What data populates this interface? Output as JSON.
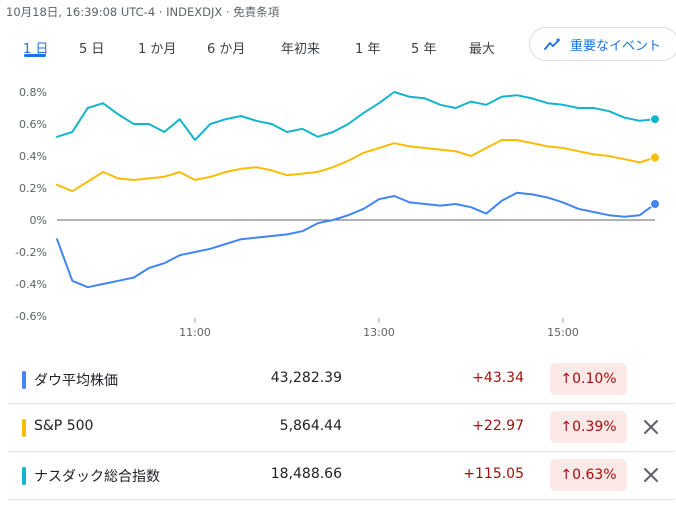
{
  "header": {
    "meta": "10月18日, 16:39:08 UTC-4 · INDEXDJX · 免責条項"
  },
  "tabs": [
    {
      "label": "1 日",
      "active": true
    },
    {
      "label": "5 日"
    },
    {
      "label": "1 か月"
    },
    {
      "label": "6 か月"
    },
    {
      "label": "年初来"
    },
    {
      "label": "1 年"
    },
    {
      "label": "5 年"
    },
    {
      "label": "最大"
    }
  ],
  "events_button": {
    "label": "重要なイベント",
    "icon": "trend-sparkle-icon"
  },
  "chart_data": {
    "type": "line",
    "y_unit": "%",
    "ylim": [
      -0.6,
      0.8
    ],
    "y_ticks": [
      "0.8%",
      "0.6%",
      "0.4%",
      "0.2%",
      "0%",
      "-0.2%",
      "-0.4%",
      "-0.6%"
    ],
    "x_ticks": [
      "11:00",
      "13:00",
      "15:00"
    ],
    "x_range": [
      "09:30",
      "16:00"
    ],
    "grid": false,
    "baseline": 0,
    "series": [
      {
        "name": "ナスダック総合指数",
        "color": "#12b5cb",
        "x": [
          "09:30",
          "09:40",
          "09:50",
          "10:00",
          "10:10",
          "10:20",
          "10:30",
          "10:40",
          "10:50",
          "11:00",
          "11:10",
          "11:20",
          "11:30",
          "11:40",
          "11:50",
          "12:00",
          "12:10",
          "12:20",
          "12:30",
          "12:40",
          "12:50",
          "13:00",
          "13:10",
          "13:20",
          "13:30",
          "13:40",
          "13:50",
          "14:00",
          "14:10",
          "14:20",
          "14:30",
          "14:40",
          "14:50",
          "15:00",
          "15:10",
          "15:20",
          "15:30",
          "15:40",
          "15:50",
          "16:00"
        ],
        "values": [
          0.52,
          0.55,
          0.7,
          0.73,
          0.66,
          0.6,
          0.6,
          0.55,
          0.63,
          0.5,
          0.6,
          0.63,
          0.65,
          0.62,
          0.6,
          0.55,
          0.57,
          0.52,
          0.55,
          0.6,
          0.67,
          0.73,
          0.8,
          0.77,
          0.76,
          0.72,
          0.7,
          0.74,
          0.72,
          0.77,
          0.78,
          0.76,
          0.73,
          0.72,
          0.7,
          0.7,
          0.68,
          0.64,
          0.62,
          0.63
        ]
      },
      {
        "name": "S&P 500",
        "color": "#fbbc04",
        "x": [
          "09:30",
          "09:40",
          "09:50",
          "10:00",
          "10:10",
          "10:20",
          "10:30",
          "10:40",
          "10:50",
          "11:00",
          "11:10",
          "11:20",
          "11:30",
          "11:40",
          "11:50",
          "12:00",
          "12:10",
          "12:20",
          "12:30",
          "12:40",
          "12:50",
          "13:00",
          "13:10",
          "13:20",
          "13:30",
          "13:40",
          "13:50",
          "14:00",
          "14:10",
          "14:20",
          "14:30",
          "14:40",
          "14:50",
          "15:00",
          "15:10",
          "15:20",
          "15:30",
          "15:40",
          "15:50",
          "16:00"
        ],
        "values": [
          0.22,
          0.18,
          0.24,
          0.3,
          0.26,
          0.25,
          0.26,
          0.27,
          0.3,
          0.25,
          0.27,
          0.3,
          0.32,
          0.33,
          0.31,
          0.28,
          0.29,
          0.3,
          0.33,
          0.37,
          0.42,
          0.45,
          0.48,
          0.46,
          0.45,
          0.44,
          0.43,
          0.4,
          0.45,
          0.5,
          0.5,
          0.48,
          0.46,
          0.45,
          0.43,
          0.41,
          0.4,
          0.38,
          0.36,
          0.39
        ]
      },
      {
        "name": "ダウ平均株価",
        "color": "#4285f4",
        "x": [
          "09:30",
          "09:40",
          "09:50",
          "10:00",
          "10:10",
          "10:20",
          "10:30",
          "10:40",
          "10:50",
          "11:00",
          "11:10",
          "11:20",
          "11:30",
          "11:40",
          "11:50",
          "12:00",
          "12:10",
          "12:20",
          "12:30",
          "12:40",
          "12:50",
          "13:00",
          "13:10",
          "13:20",
          "13:30",
          "13:40",
          "13:50",
          "14:00",
          "14:10",
          "14:20",
          "14:30",
          "14:40",
          "14:50",
          "15:00",
          "15:10",
          "15:20",
          "15:30",
          "15:40",
          "15:50",
          "16:00"
        ],
        "values": [
          -0.12,
          -0.38,
          -0.42,
          -0.4,
          -0.38,
          -0.36,
          -0.3,
          -0.27,
          -0.22,
          -0.2,
          -0.18,
          -0.15,
          -0.12,
          -0.11,
          -0.1,
          -0.09,
          -0.07,
          -0.02,
          0.0,
          0.03,
          0.07,
          0.13,
          0.15,
          0.11,
          0.1,
          0.09,
          0.1,
          0.08,
          0.04,
          0.12,
          0.17,
          0.16,
          0.14,
          0.11,
          0.07,
          0.05,
          0.03,
          0.02,
          0.03,
          0.1
        ]
      }
    ]
  },
  "indices": [
    {
      "name": "ダウ平均株価",
      "color": "#4285f4",
      "price": "43,282.39",
      "change": "+43.34",
      "percent": "0.10%",
      "removable": false
    },
    {
      "name": "S&P 500",
      "color": "#fbbc04",
      "price": "5,864.44",
      "change": "+22.97",
      "percent": "0.39%",
      "removable": true
    },
    {
      "name": "ナスダック総合指数",
      "color": "#12b5cb",
      "price": "18,488.66",
      "change": "+115.05",
      "percent": "0.63%",
      "removable": true
    }
  ],
  "badge_arrow": "↑"
}
